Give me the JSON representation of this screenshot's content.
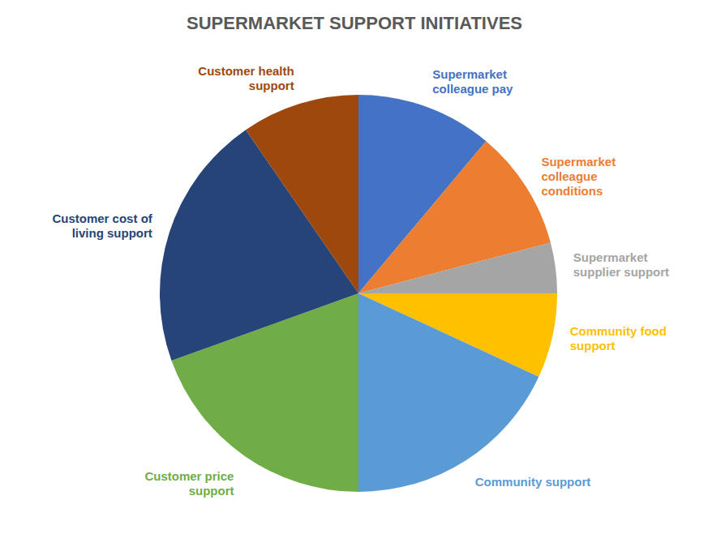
{
  "chart_data": {
    "type": "pie",
    "title": "SUPERMARKET SUPPORT INITIATIVES",
    "categories": [
      "Supermarket colleague pay",
      "Supermarket colleague conditions",
      "Supermarket supplier support",
      "Community food support",
      "Community support",
      "Customer price support",
      "Customer cost of living support",
      "Customer health support"
    ],
    "values": [
      11.1,
      9.8,
      4.1,
      6.9,
      18.1,
      19.5,
      20.9,
      9.6
    ],
    "colors": [
      "#4472c4",
      "#ed7d31",
      "#a5a5a5",
      "#ffc000",
      "#5b9bd5",
      "#70ad47",
      "#264478",
      "#9e480e"
    ]
  }
}
